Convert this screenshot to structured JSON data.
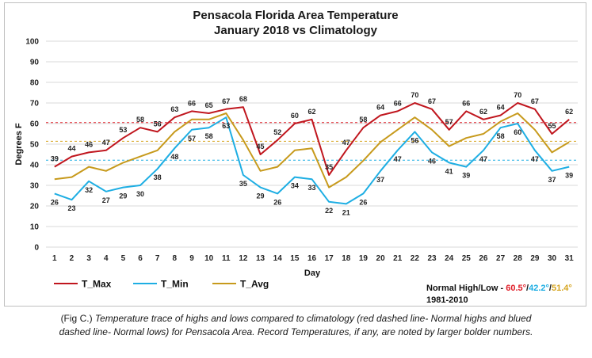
{
  "chart_data": {
    "type": "line",
    "title": "Pensacola Florida Area Temperature",
    "subtitle": "January 2018 vs Climatology",
    "xlabel": "Day",
    "ylabel": "Degrees F",
    "ylim": [
      0,
      100
    ],
    "yticks": [
      0,
      10,
      20,
      30,
      40,
      50,
      60,
      70,
      80,
      90,
      100
    ],
    "x": [
      1,
      2,
      3,
      4,
      5,
      6,
      7,
      8,
      9,
      10,
      11,
      12,
      13,
      14,
      15,
      16,
      17,
      18,
      19,
      20,
      21,
      22,
      23,
      24,
      25,
      26,
      27,
      28,
      29,
      30,
      31
    ],
    "grid": true,
    "legend_position": "bottom-left",
    "series": [
      {
        "name": "T_Max",
        "color": "#c0161e",
        "values": [
          39,
          44,
          46,
          47,
          53,
          58,
          56,
          63,
          66,
          65,
          67,
          68,
          45,
          52,
          60,
          62,
          35,
          47,
          58,
          64,
          66,
          70,
          67,
          57,
          66,
          62,
          64,
          70,
          67,
          55,
          62
        ],
        "label_position": "above"
      },
      {
        "name": "T_Min",
        "color": "#1eaee3",
        "values": [
          26,
          23,
          32,
          27,
          29,
          30,
          38,
          48,
          57,
          58,
          63,
          35,
          29,
          26,
          34,
          33,
          22,
          21,
          26,
          37,
          47,
          56,
          46,
          41,
          39,
          47,
          58,
          60,
          47,
          37,
          39
        ],
        "label_position": "below"
      },
      {
        "name": "T_Avg",
        "color": "#c79a1c",
        "values": [
          33,
          34,
          39,
          37,
          41,
          44,
          47,
          56,
          62,
          62,
          65,
          52,
          37,
          39,
          47,
          48,
          29,
          34,
          42,
          51,
          57,
          63,
          57,
          49,
          53,
          55,
          61,
          65,
          57,
          46,
          51
        ]
      }
    ],
    "normals": [
      {
        "name": "Normal High",
        "value": 60.5,
        "color": "#e0202a"
      },
      {
        "name": "Normal Low",
        "value": 42.2,
        "color": "#1eaee3"
      },
      {
        "name": "Normal Avg",
        "value": 51.4,
        "color": "#d6a520"
      }
    ],
    "normals_text": {
      "prefix": "Normal High/Low - ",
      "high": "60.5°",
      "sep1": "/",
      "low": "42.2°",
      "sep2": "/",
      "avg": "51.4°",
      "period": "1981-2010"
    }
  },
  "caption": {
    "prefix": "(Fig C.) ",
    "text": "Temperature trace of highs and lows compared to climatology (red dashed line- Normal highs and blued dashed line- Normal lows) for Pensacola Area. Record Temperatures, if any, are noted by larger bolder numbers."
  }
}
